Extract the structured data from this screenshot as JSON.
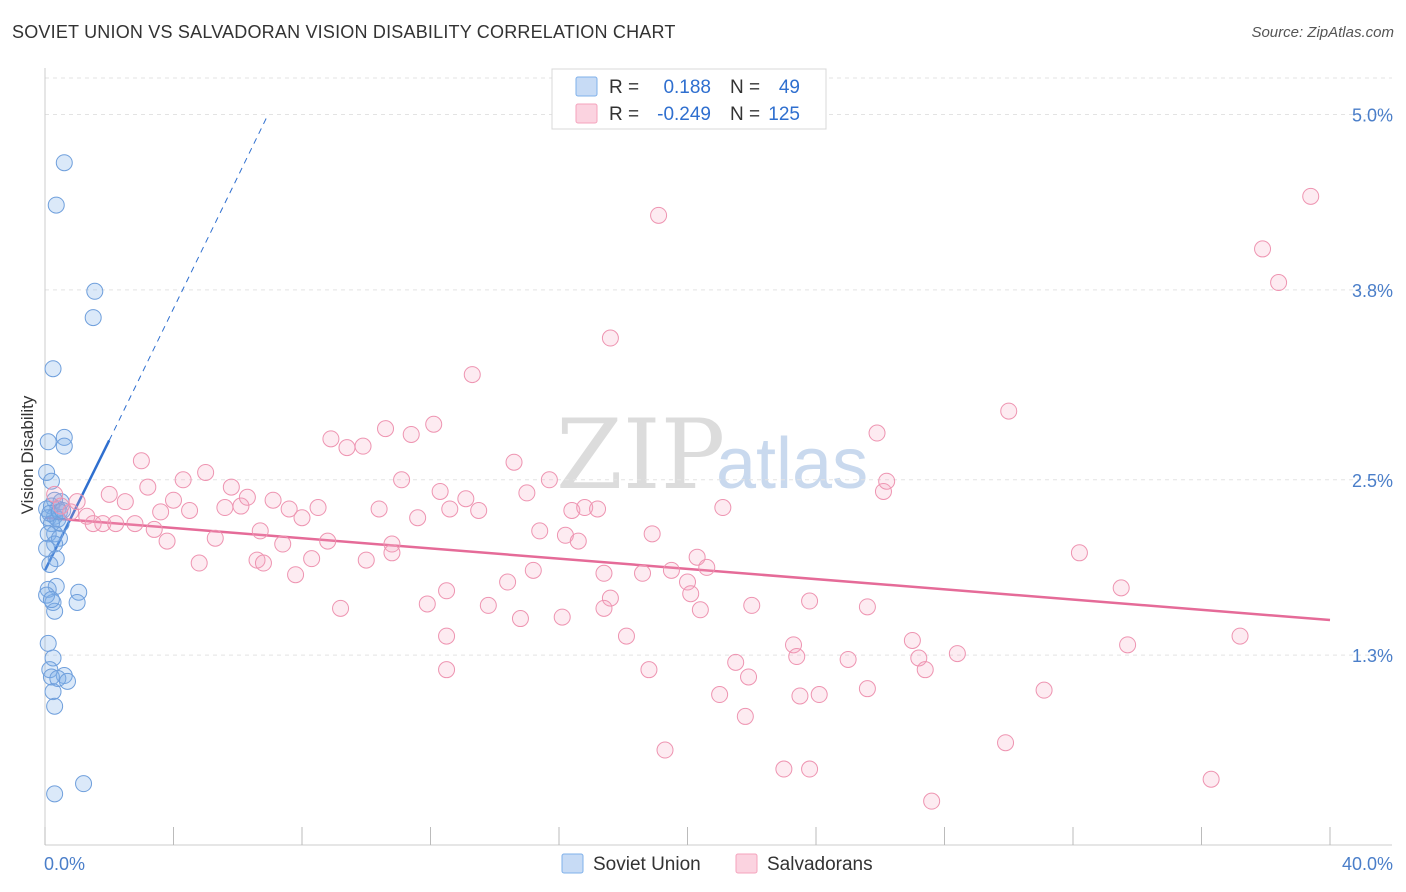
{
  "header": {
    "title": "SOVIET UNION VS SALVADORAN VISION DISABILITY CORRELATION CHART",
    "source": "Source: ZipAtlas.com"
  },
  "watermark": {
    "zip": "ZIP",
    "atlas": "atlas"
  },
  "legend": {
    "r_label": "R =",
    "n_label": "N =",
    "soviet": {
      "r": "0.188",
      "n": "49",
      "color": "#7fb0ea"
    },
    "salvadoran": {
      "r": "-0.249",
      "n": "125",
      "color": "#f4a3bd"
    }
  },
  "bottom_legend": {
    "soviet": "Soviet Union",
    "salvadoran": "Salvadorans"
  },
  "chart_data": {
    "type": "scatter",
    "title": "SOVIET UNION VS SALVADORAN VISION DISABILITY CORRELATION CHART",
    "xlabel": "",
    "ylabel": "Vision Disability",
    "xlim": [
      0,
      40
    ],
    "ylim": [
      0,
      5.25
    ],
    "x_ticks_labeled": [
      "0.0%",
      "40.0%"
    ],
    "y_ticks": [
      1.3,
      2.5,
      3.8,
      5.0
    ],
    "y_tick_labels": [
      "1.3%",
      "2.5%",
      "3.8%",
      "5.0%"
    ],
    "grid": true,
    "legend_position": "top-center",
    "series": [
      {
        "name": "Soviet Union",
        "color": "#7fb0ea",
        "r": 0.188,
        "n": 49,
        "trend": {
          "x": [
            0.0,
            2.0
          ],
          "y": [
            1.88,
            2.77
          ],
          "extended_to": [
            6.9,
            4.98
          ]
        },
        "points": [
          [
            0.6,
            4.67
          ],
          [
            0.35,
            4.38
          ],
          [
            1.55,
            3.79
          ],
          [
            1.5,
            3.61
          ],
          [
            0.25,
            3.26
          ],
          [
            0.6,
            2.79
          ],
          [
            0.6,
            2.73
          ],
          [
            0.1,
            2.76
          ],
          [
            0.05,
            2.55
          ],
          [
            0.2,
            2.49
          ],
          [
            0.5,
            2.35
          ],
          [
            0.3,
            2.36
          ],
          [
            0.4,
            2.3
          ],
          [
            0.2,
            2.32
          ],
          [
            0.05,
            2.3
          ],
          [
            0.3,
            2.25
          ],
          [
            0.1,
            2.24
          ],
          [
            0.4,
            2.23
          ],
          [
            0.5,
            2.2
          ],
          [
            0.2,
            2.2
          ],
          [
            0.3,
            2.13
          ],
          [
            0.1,
            2.13
          ],
          [
            0.45,
            2.1
          ],
          [
            0.3,
            2.06
          ],
          [
            0.05,
            2.03
          ],
          [
            0.35,
            1.96
          ],
          [
            0.15,
            1.92
          ],
          [
            0.35,
            1.77
          ],
          [
            0.1,
            1.75
          ],
          [
            1.05,
            1.73
          ],
          [
            0.25,
            1.66
          ],
          [
            1.0,
            1.66
          ],
          [
            0.3,
            1.6
          ],
          [
            0.05,
            1.71
          ],
          [
            0.1,
            1.38
          ],
          [
            0.25,
            1.28
          ],
          [
            0.15,
            1.2
          ],
          [
            0.6,
            1.16
          ],
          [
            0.2,
            1.15
          ],
          [
            0.4,
            1.14
          ],
          [
            0.7,
            1.12
          ],
          [
            0.25,
            1.05
          ],
          [
            0.3,
            0.95
          ],
          [
            1.2,
            0.42
          ],
          [
            0.3,
            0.35
          ],
          [
            0.15,
            2.27
          ],
          [
            0.45,
            2.28
          ],
          [
            0.2,
            1.68
          ],
          [
            0.55,
            2.29
          ]
        ]
      },
      {
        "name": "Salvadorans",
        "color": "#f4a3bd",
        "r": -0.249,
        "n": 125,
        "trend": {
          "x": [
            0.0,
            40.0
          ],
          "y": [
            2.24,
            1.54
          ]
        },
        "points": [
          [
            0.3,
            2.4
          ],
          [
            0.5,
            2.32
          ],
          [
            0.8,
            2.28
          ],
          [
            1.0,
            2.35
          ],
          [
            1.3,
            2.25
          ],
          [
            1.5,
            2.2
          ],
          [
            1.8,
            2.2
          ],
          [
            2.0,
            2.4
          ],
          [
            2.2,
            2.2
          ],
          [
            2.5,
            2.35
          ],
          [
            2.8,
            2.2
          ],
          [
            3.0,
            2.63
          ],
          [
            3.2,
            2.45
          ],
          [
            3.4,
            2.16
          ],
          [
            3.6,
            2.28
          ],
          [
            3.8,
            2.08
          ],
          [
            4.0,
            2.36
          ],
          [
            4.3,
            2.5
          ],
          [
            4.5,
            2.29
          ],
          [
            4.8,
            1.93
          ],
          [
            5.0,
            2.55
          ],
          [
            5.3,
            2.1
          ],
          [
            5.6,
            2.31
          ],
          [
            5.8,
            2.45
          ],
          [
            6.1,
            2.32
          ],
          [
            6.3,
            2.38
          ],
          [
            6.6,
            1.95
          ],
          [
            6.7,
            2.15
          ],
          [
            6.8,
            1.93
          ],
          [
            7.1,
            2.36
          ],
          [
            7.4,
            2.06
          ],
          [
            7.6,
            2.3
          ],
          [
            7.8,
            1.85
          ],
          [
            8.0,
            2.24
          ],
          [
            8.3,
            1.96
          ],
          [
            8.5,
            2.31
          ],
          [
            8.8,
            2.08
          ],
          [
            8.9,
            2.78
          ],
          [
            9.2,
            1.62
          ],
          [
            9.4,
            2.72
          ],
          [
            9.9,
            2.73
          ],
          [
            10.0,
            1.95
          ],
          [
            10.4,
            2.3
          ],
          [
            10.6,
            2.85
          ],
          [
            10.8,
            2.06
          ],
          [
            10.8,
            2.0
          ],
          [
            11.1,
            2.5
          ],
          [
            11.4,
            2.81
          ],
          [
            11.6,
            2.24
          ],
          [
            11.9,
            1.65
          ],
          [
            12.1,
            2.88
          ],
          [
            12.3,
            2.42
          ],
          [
            12.6,
            2.3
          ],
          [
            12.5,
            1.2
          ],
          [
            12.5,
            1.43
          ],
          [
            12.5,
            1.74
          ],
          [
            13.1,
            2.37
          ],
          [
            13.3,
            3.22
          ],
          [
            13.5,
            2.29
          ],
          [
            13.8,
            1.64
          ],
          [
            14.4,
            1.8
          ],
          [
            14.6,
            2.62
          ],
          [
            14.8,
            1.55
          ],
          [
            15.0,
            2.41
          ],
          [
            15.2,
            1.88
          ],
          [
            15.4,
            2.15
          ],
          [
            15.7,
            2.5
          ],
          [
            16.1,
            1.56
          ],
          [
            16.2,
            2.12
          ],
          [
            16.4,
            2.29
          ],
          [
            16.6,
            2.08
          ],
          [
            16.8,
            2.31
          ],
          [
            17.2,
            2.3
          ],
          [
            17.4,
            1.86
          ],
          [
            17.6,
            1.69
          ],
          [
            17.4,
            1.62
          ],
          [
            17.6,
            3.47
          ],
          [
            18.1,
            1.43
          ],
          [
            18.6,
            1.86
          ],
          [
            18.9,
            2.13
          ],
          [
            18.8,
            1.2
          ],
          [
            19.1,
            4.31
          ],
          [
            19.5,
            1.88
          ],
          [
            19.3,
            0.65
          ],
          [
            20.0,
            1.8
          ],
          [
            20.1,
            1.72
          ],
          [
            20.4,
            1.61
          ],
          [
            20.3,
            1.97
          ],
          [
            20.6,
            1.9
          ],
          [
            21.0,
            1.03
          ],
          [
            21.1,
            2.31
          ],
          [
            21.5,
            1.25
          ],
          [
            21.8,
            0.88
          ],
          [
            21.9,
            1.15
          ],
          [
            22.0,
            1.64
          ],
          [
            23.3,
            1.37
          ],
          [
            23.4,
            1.29
          ],
          [
            23.0,
            0.52
          ],
          [
            23.5,
            1.02
          ],
          [
            23.8,
            1.67
          ],
          [
            24.1,
            1.03
          ],
          [
            23.8,
            0.52
          ],
          [
            25.0,
            1.27
          ],
          [
            25.6,
            1.63
          ],
          [
            25.6,
            1.07
          ],
          [
            25.9,
            2.82
          ],
          [
            26.1,
            2.42
          ],
          [
            26.2,
            2.49
          ],
          [
            27.0,
            1.4
          ],
          [
            27.2,
            1.28
          ],
          [
            27.4,
            1.2
          ],
          [
            27.6,
            0.3
          ],
          [
            28.4,
            1.31
          ],
          [
            30.0,
            2.97
          ],
          [
            29.9,
            0.7
          ],
          [
            31.1,
            1.06
          ],
          [
            32.2,
            2.0
          ],
          [
            33.5,
            1.76
          ],
          [
            33.7,
            1.37
          ],
          [
            36.3,
            0.45
          ],
          [
            37.2,
            1.43
          ],
          [
            37.9,
            4.08
          ],
          [
            38.4,
            3.85
          ],
          [
            39.4,
            4.44
          ]
        ]
      }
    ]
  }
}
